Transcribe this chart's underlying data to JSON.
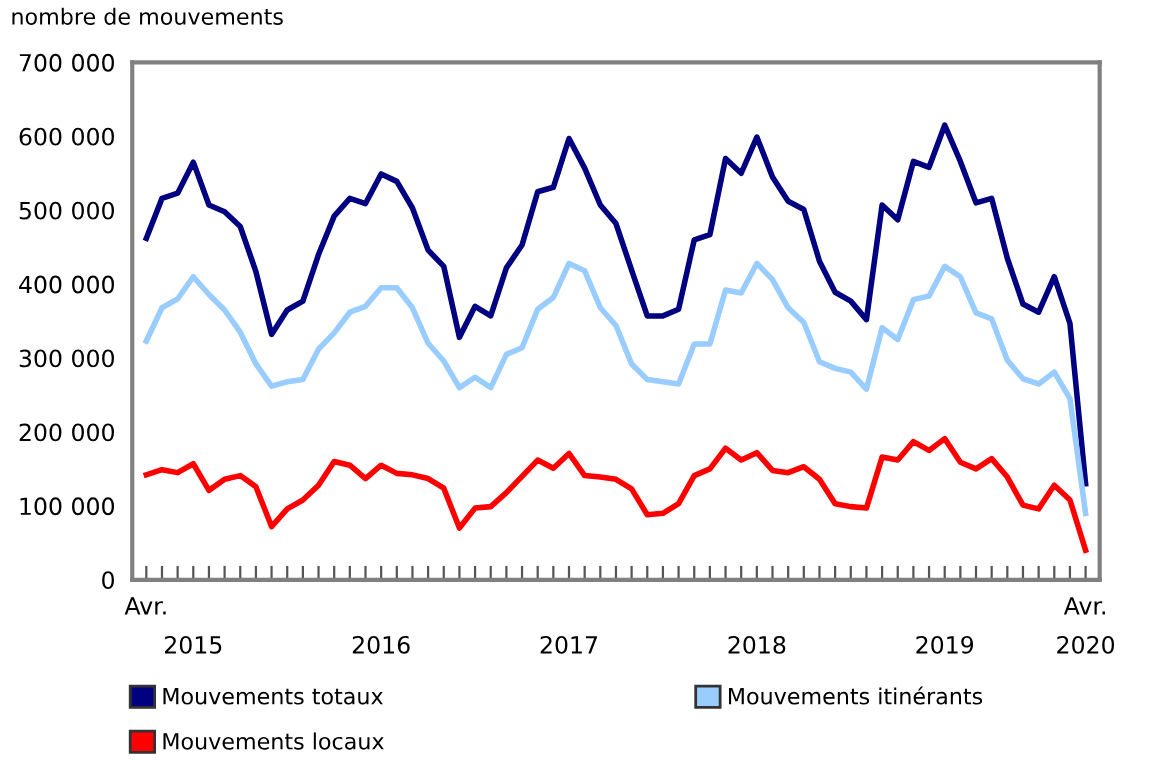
{
  "chart_data": {
    "type": "line",
    "ylabel": "nombre de mouvements",
    "categories": [
      "Avr.",
      null,
      null,
      "2015",
      null,
      null,
      null,
      null,
      null,
      null,
      null,
      null,
      null,
      null,
      null,
      "2016",
      null,
      null,
      null,
      null,
      null,
      null,
      null,
      null,
      null,
      null,
      null,
      "2017",
      null,
      null,
      null,
      null,
      null,
      null,
      null,
      null,
      null,
      null,
      null,
      "2018",
      null,
      null,
      null,
      null,
      null,
      null,
      null,
      null,
      null,
      null,
      null,
      "2019",
      null,
      null,
      null,
      null,
      null,
      null,
      null,
      null,
      "Avr.\n2020"
    ],
    "series": [
      {
        "name": "Mouvements totaux",
        "color": "#000080",
        "values": [
          462000,
          516000,
          523000,
          565000,
          507000,
          498000,
          478000,
          417000,
          332000,
          365000,
          377000,
          440000,
          492000,
          516000,
          509000,
          549000,
          539000,
          503000,
          446000,
          424000,
          328000,
          370000,
          357000,
          422000,
          453000,
          525000,
          531000,
          597000,
          557000,
          507000,
          482000,
          419000,
          357000,
          357000,
          366000,
          460000,
          467000,
          570000,
          550000,
          599000,
          545000,
          512000,
          501000,
          431000,
          389000,
          377000,
          352000,
          507000,
          487000,
          566000,
          558000,
          615000,
          566000,
          510000,
          516000,
          435000,
          373000,
          362000,
          410000,
          347000,
          130000
        ]
      },
      {
        "name": "Mouvements itinérants",
        "color": "#99ccff",
        "values": [
          323000,
          368000,
          380000,
          410000,
          386000,
          365000,
          335000,
          292000,
          262000,
          268000,
          271000,
          312000,
          334000,
          362000,
          370000,
          395000,
          395000,
          368000,
          320000,
          296000,
          260000,
          274000,
          260000,
          305000,
          314000,
          366000,
          382000,
          428000,
          418000,
          368000,
          344000,
          292000,
          271000,
          268000,
          265000,
          319000,
          319000,
          392000,
          388000,
          428000,
          406000,
          368000,
          348000,
          295000,
          286000,
          281000,
          258000,
          341000,
          325000,
          379000,
          384000,
          424000,
          410000,
          361000,
          353000,
          297000,
          272000,
          265000,
          281000,
          245000,
          90000
        ]
      },
      {
        "name": "Mouvements locaux",
        "color": "#ff0000",
        "values": [
          142000,
          149000,
          145000,
          157000,
          121000,
          136000,
          141000,
          126000,
          72000,
          96000,
          108000,
          128000,
          160000,
          155000,
          137000,
          155000,
          144000,
          142000,
          137000,
          124000,
          70000,
          97000,
          99000,
          118000,
          140000,
          162000,
          151000,
          171000,
          141000,
          139000,
          136000,
          123000,
          88000,
          90000,
          103000,
          141000,
          150000,
          178000,
          162000,
          172000,
          148000,
          145000,
          153000,
          136000,
          103000,
          99000,
          97000,
          166000,
          162000,
          187000,
          175000,
          191000,
          159000,
          150000,
          164000,
          139000,
          101000,
          96000,
          128000,
          108000,
          40000
        ]
      }
    ],
    "ylim": [
      0,
      700000
    ],
    "yticks": [
      {
        "value": 0,
        "label": "0"
      },
      {
        "value": 100000,
        "label": "100 000"
      },
      {
        "value": 200000,
        "label": "200 000"
      },
      {
        "value": 300000,
        "label": "300 000"
      },
      {
        "value": 400000,
        "label": "400 000"
      },
      {
        "value": 500000,
        "label": "500 000"
      },
      {
        "value": 600000,
        "label": "600 000"
      },
      {
        "value": 700000,
        "label": "700 000"
      }
    ],
    "grid": false,
    "legend": "bottom",
    "marker": "none",
    "line_style": "solid"
  }
}
